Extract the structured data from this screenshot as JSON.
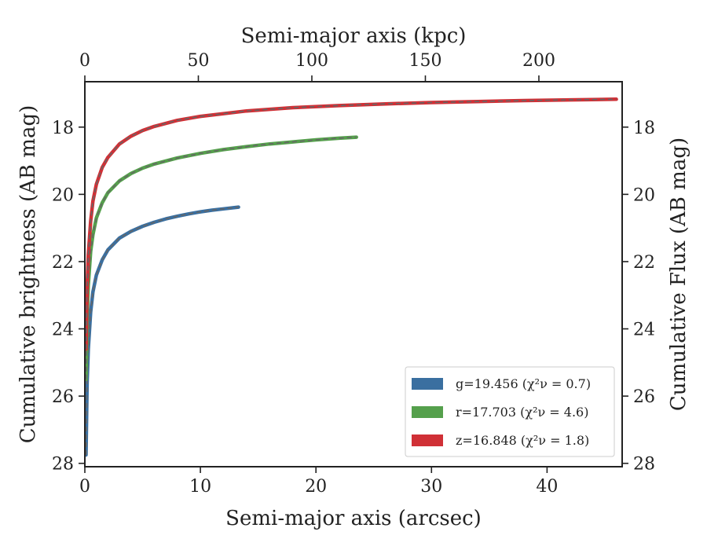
{
  "chart_data": {
    "type": "line",
    "x_label": "Semi-major axis (arcsec)",
    "top_label": "Semi-major axis (kpc)",
    "y_label": "Cumulative brightness (AB mag)",
    "right_label": "Cumulative Flux (AB mag)",
    "x_range": [
      0,
      46.5
    ],
    "y_range": [
      28.1,
      16.65
    ],
    "y_inverted": true,
    "kpc_per_arcsec": 5.09,
    "x_ticks": [
      0,
      10,
      20,
      30,
      40
    ],
    "x_tick_labels": [
      "0",
      "10",
      "20",
      "30",
      "40"
    ],
    "top_ticks": [
      0,
      50,
      100,
      150,
      200
    ],
    "top_tick_labels": [
      "0",
      "50",
      "100",
      "150",
      "200"
    ],
    "y_ticks": [
      18,
      20,
      22,
      24,
      26,
      28
    ],
    "y_tick_labels": [
      "18",
      "20",
      "22",
      "24",
      "26",
      "28"
    ],
    "legend_position": "lower right",
    "grid": false,
    "model_line_style": "dashed gray",
    "series": [
      {
        "name": "g",
        "label": "g=19.456 (χ²ν = 0.7)",
        "color": "#3a6fa0",
        "x": [
          0.1,
          0.2,
          0.3,
          0.5,
          0.7,
          1.0,
          1.5,
          2.0,
          3.0,
          4.0,
          5.0,
          6.0,
          7.0,
          8.0,
          9.0,
          10.0,
          11.0,
          12.0,
          13.3
        ],
        "y": [
          27.75,
          25.6,
          24.6,
          23.5,
          22.9,
          22.4,
          21.95,
          21.65,
          21.3,
          21.1,
          20.95,
          20.83,
          20.73,
          20.65,
          20.58,
          20.52,
          20.47,
          20.43,
          20.38
        ]
      },
      {
        "name": "r",
        "label": "r=17.703 (χ²ν = 4.6)",
        "color": "#55a04c",
        "x": [
          0.1,
          0.2,
          0.3,
          0.5,
          0.7,
          1.0,
          1.5,
          2.0,
          3.0,
          4.0,
          5.0,
          6.0,
          8.0,
          10.0,
          12.0,
          14.0,
          16.0,
          18.0,
          20.0,
          22.0,
          23.5
        ],
        "y": [
          25.5,
          23.7,
          22.7,
          21.7,
          21.2,
          20.7,
          20.25,
          19.95,
          19.6,
          19.38,
          19.22,
          19.1,
          18.92,
          18.78,
          18.67,
          18.58,
          18.5,
          18.44,
          18.38,
          18.33,
          18.3
        ]
      },
      {
        "name": "z",
        "label": "z=16.848 (χ²ν = 1.8)",
        "color": "#d03036",
        "x": [
          0.1,
          0.2,
          0.3,
          0.5,
          0.7,
          1.0,
          1.5,
          2.0,
          3.0,
          4.0,
          5.0,
          6.0,
          8.0,
          10.0,
          14.0,
          18.0,
          22.0,
          26.0,
          30.0,
          34.0,
          38.0,
          42.0,
          46.0
        ],
        "y": [
          24.6,
          22.8,
          21.8,
          20.8,
          20.2,
          19.7,
          19.2,
          18.9,
          18.5,
          18.27,
          18.1,
          17.98,
          17.8,
          17.68,
          17.52,
          17.42,
          17.36,
          17.31,
          17.27,
          17.24,
          17.21,
          17.19,
          17.17
        ]
      }
    ]
  }
}
